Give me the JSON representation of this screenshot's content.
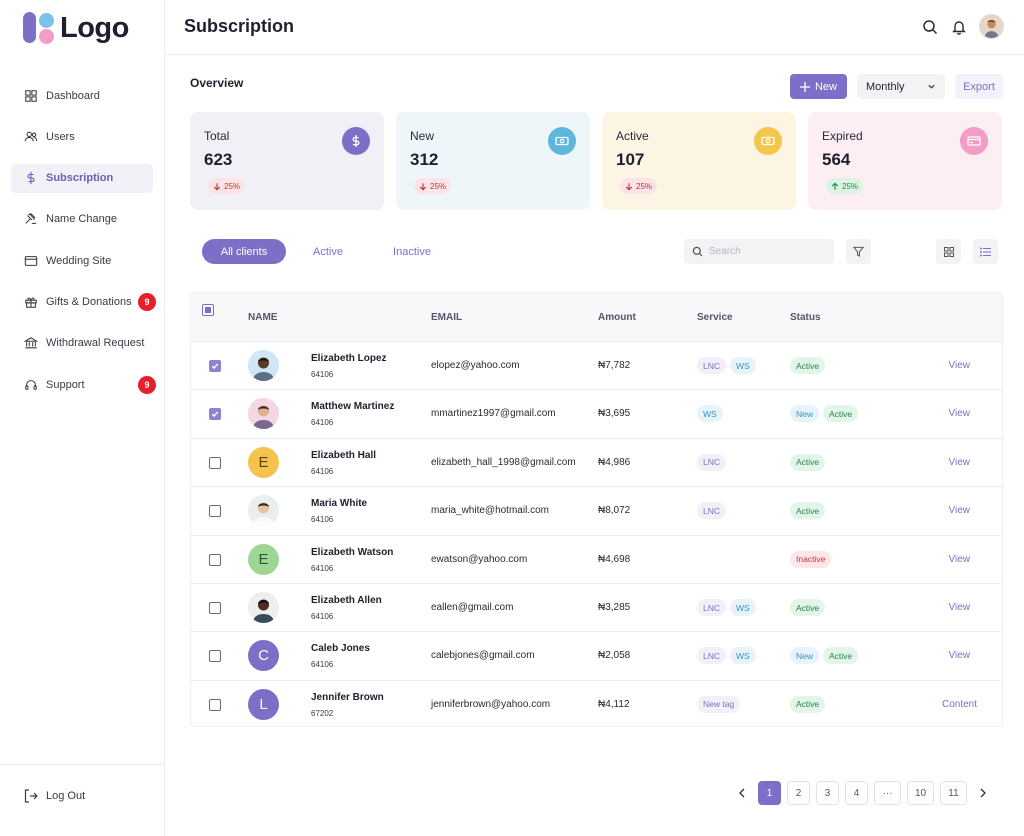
{
  "brand": {
    "logo_text": "Logo"
  },
  "sidebar": {
    "items": [
      {
        "label": "Dashboard",
        "icon": "grid-icon"
      },
      {
        "label": "Users",
        "icon": "users-icon"
      },
      {
        "label": "Subscription",
        "icon": "dollar-icon",
        "active": true
      },
      {
        "label": "Name Change",
        "icon": "gavel-icon"
      },
      {
        "label": "Wedding Site",
        "icon": "browser-icon"
      },
      {
        "label": "Gifts & Donations",
        "icon": "gift-icon",
        "badge": "9"
      },
      {
        "label": "Withdrawal Request",
        "icon": "bank-icon"
      },
      {
        "label": "Support",
        "icon": "headset-icon",
        "badge": "9"
      }
    ],
    "logout_label": "Log Out"
  },
  "header": {
    "title": "Subscription"
  },
  "overview": {
    "title": "Overview",
    "new_label": "New",
    "period": "Monthly",
    "export_label": "Export",
    "stats": [
      {
        "label": "Total",
        "value": "623",
        "delta": "25%",
        "direction": "down",
        "icon": "dollar-icon",
        "bg": "#f1f0f7",
        "circle": "#7c6fc7"
      },
      {
        "label": "New",
        "value": "312",
        "delta": "25%",
        "direction": "down",
        "icon": "cash-icon",
        "bg": "#eef6fa",
        "circle": "#5fb6dd"
      },
      {
        "label": "Active",
        "value": "107",
        "delta": "25%",
        "direction": "down",
        "icon": "cash-icon",
        "bg": "#fdf5e4",
        "circle": "#f4c64a"
      },
      {
        "label": "Expired",
        "value": "564",
        "delta": "25%",
        "direction": "up",
        "icon": "card-icon",
        "bg": "#fdeef4",
        "circle": "#f39cc6"
      }
    ]
  },
  "filters": {
    "tabs": [
      "All clients",
      "Active",
      "Inactive"
    ],
    "search_placeholder": "Search"
  },
  "table": {
    "columns": [
      "NAME",
      "EMAIL",
      "Amount",
      "Service",
      "Status"
    ],
    "rows": [
      {
        "checked": true,
        "name": "Elizabeth Lopez",
        "id": "64106",
        "email": "elopez@yahoo.com",
        "amount": "₦7,782",
        "services": [
          "LNC",
          "WS"
        ],
        "status": [
          "Active"
        ],
        "action": "View",
        "avatar": {
          "type": "photo",
          "bg": "#cfe6f5"
        }
      },
      {
        "checked": true,
        "name": "Matthew Martinez",
        "id": "64106",
        "email": "mmartinez1997@gmail.com",
        "amount": "₦3,695",
        "services": [
          "WS"
        ],
        "status": [
          "New",
          "Active"
        ],
        "action": "View",
        "avatar": {
          "type": "photo",
          "bg": "#f6d6e6"
        }
      },
      {
        "checked": false,
        "name": "Elizabeth Hall",
        "id": "64106",
        "email": "elizabeth_hall_1998@gmail.com",
        "amount": "₦4,986",
        "services": [
          "LNC"
        ],
        "status": [
          "Active"
        ],
        "action": "View",
        "avatar": {
          "type": "letter",
          "letter": "E",
          "bg": "#f5c24c",
          "fg": "#5a4312"
        }
      },
      {
        "checked": false,
        "name": "Maria White",
        "id": "64106",
        "email": "maria_white@hotmail.com",
        "amount": "₦8,072",
        "services": [
          "LNC"
        ],
        "status": [
          "Active"
        ],
        "action": "View",
        "avatar": {
          "type": "photo",
          "bg": "#e9eef0"
        }
      },
      {
        "checked": false,
        "name": "Elizabeth Watson",
        "id": "64106",
        "email": "ewatson@yahoo.com",
        "amount": "₦4,698",
        "services": [],
        "status": [
          "Inactive"
        ],
        "action": "View",
        "avatar": {
          "type": "letter",
          "letter": "E",
          "bg": "#9fd694",
          "fg": "#2b5a24"
        }
      },
      {
        "checked": false,
        "name": "Elizabeth Allen",
        "id": "64106",
        "email": "eallen@gmail.com",
        "amount": "₦3,285",
        "services": [
          "LNC",
          "WS"
        ],
        "status": [
          "Active"
        ],
        "action": "View",
        "avatar": {
          "type": "photo",
          "bg": "#eeeeee"
        }
      },
      {
        "checked": false,
        "name": "Caleb Jones",
        "id": "64106",
        "email": "calebjones@gmail.com",
        "amount": "₦2,058",
        "services": [
          "LNC",
          "WS"
        ],
        "status": [
          "New",
          "Active"
        ],
        "action": "View",
        "avatar": {
          "type": "letter",
          "letter": "C",
          "bg": "#7c6fc7",
          "fg": "#ffffff"
        }
      },
      {
        "checked": false,
        "name": "Jennifer Brown",
        "id": "67202",
        "email": "jenniferbrown@yahoo.com",
        "amount": "₦4,112",
        "services": [
          "New tag"
        ],
        "status": [
          "Active"
        ],
        "action": "Content",
        "avatar": {
          "type": "letter",
          "letter": "L",
          "bg": "#7c6fc7",
          "fg": "#ffffff"
        }
      }
    ]
  },
  "pagination": {
    "pages": [
      "1",
      "2",
      "3",
      "4",
      "···",
      "10",
      "11"
    ],
    "current": "1"
  }
}
